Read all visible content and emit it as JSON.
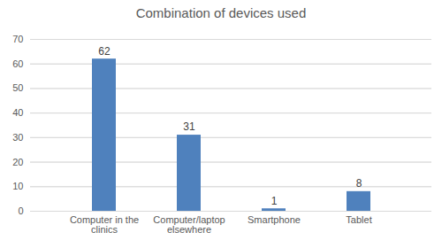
{
  "chart_data": {
    "type": "bar",
    "title": "Combination of devices used",
    "categories": [
      "Computer in the clinics",
      "Computer/laptop elsewhere",
      "Smartphone",
      "Tablet"
    ],
    "values": [
      62,
      31,
      1,
      8
    ],
    "color": "#4f81bd",
    "ylim": [
      0,
      70
    ],
    "yticks": [
      0,
      10,
      20,
      30,
      40,
      50,
      60,
      70
    ],
    "grid": true,
    "data_labels": true
  }
}
